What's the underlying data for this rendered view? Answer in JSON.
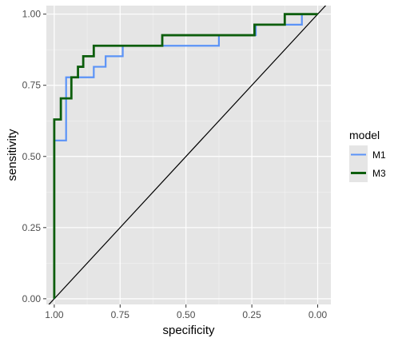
{
  "chart_data": {
    "type": "line",
    "xlabel": "specificity",
    "ylabel": "sensitivity",
    "x_reversed": true,
    "xlim": [
      1.03,
      -0.05
    ],
    "ylim": [
      -0.02,
      1.03
    ],
    "x_ticks": [
      1.0,
      0.75,
      0.5,
      0.25,
      0.0
    ],
    "x_tick_labels": [
      "1.00",
      "0.75",
      "0.50",
      "0.25",
      "0.00"
    ],
    "y_ticks": [
      0.0,
      0.25,
      0.5,
      0.75,
      1.0
    ],
    "y_tick_labels": [
      "0.00",
      "0.25",
      "0.50",
      "0.75",
      "1.00"
    ],
    "grid": true,
    "background": "#e5e5e5",
    "legend": {
      "title": "model",
      "position": "right"
    },
    "reference_line": {
      "from": [
        1.0,
        0.0
      ],
      "to": [
        0.0,
        1.0
      ],
      "color": "#000000"
    },
    "series": [
      {
        "name": "M1",
        "color": "#5b93f7",
        "points": [
          [
            1.0,
            0.0
          ],
          [
            1.0,
            0.556
          ],
          [
            0.955,
            0.556
          ],
          [
            0.955,
            0.778
          ],
          [
            0.85,
            0.778
          ],
          [
            0.85,
            0.815
          ],
          [
            0.805,
            0.815
          ],
          [
            0.805,
            0.852
          ],
          [
            0.74,
            0.852
          ],
          [
            0.74,
            0.889
          ],
          [
            0.375,
            0.889
          ],
          [
            0.375,
            0.926
          ],
          [
            0.235,
            0.926
          ],
          [
            0.235,
            0.963
          ],
          [
            0.06,
            0.963
          ],
          [
            0.06,
            1.0
          ],
          [
            0.0,
            1.0
          ]
        ]
      },
      {
        "name": "M3",
        "color": "#0d5e0d",
        "points": [
          [
            1.0,
            0.0
          ],
          [
            1.0,
            0.63
          ],
          [
            0.975,
            0.63
          ],
          [
            0.975,
            0.704
          ],
          [
            0.935,
            0.704
          ],
          [
            0.935,
            0.778
          ],
          [
            0.91,
            0.778
          ],
          [
            0.91,
            0.815
          ],
          [
            0.89,
            0.815
          ],
          [
            0.89,
            0.852
          ],
          [
            0.85,
            0.852
          ],
          [
            0.85,
            0.889
          ],
          [
            0.59,
            0.889
          ],
          [
            0.59,
            0.926
          ],
          [
            0.24,
            0.926
          ],
          [
            0.24,
            0.963
          ],
          [
            0.125,
            0.963
          ],
          [
            0.125,
            1.0
          ],
          [
            0.0,
            1.0
          ]
        ]
      }
    ]
  }
}
